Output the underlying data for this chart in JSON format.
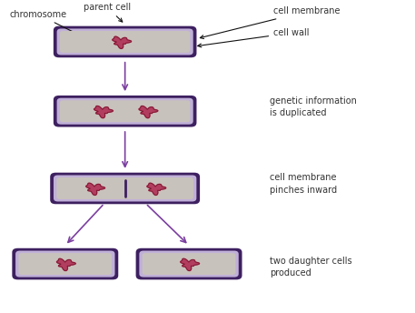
{
  "bg_color": "#ffffff",
  "cell_wall_color": "#3d2060",
  "cell_membrane_color": "#c0b0d8",
  "cell_interior_color": "#c8c2bc",
  "chromosome_color": "#b03055",
  "arrow_color": "#7b3fa0",
  "text_color": "#333333",
  "labels": {
    "chromosome": "chromosome",
    "parent_cell": "parent cell",
    "cell_membrane": "cell membrane",
    "cell_wall": "cell wall",
    "step2": "genetic information\nis duplicated",
    "step3": "cell membrane\npinches inward",
    "step4": "two daughter cells\nproduced"
  }
}
